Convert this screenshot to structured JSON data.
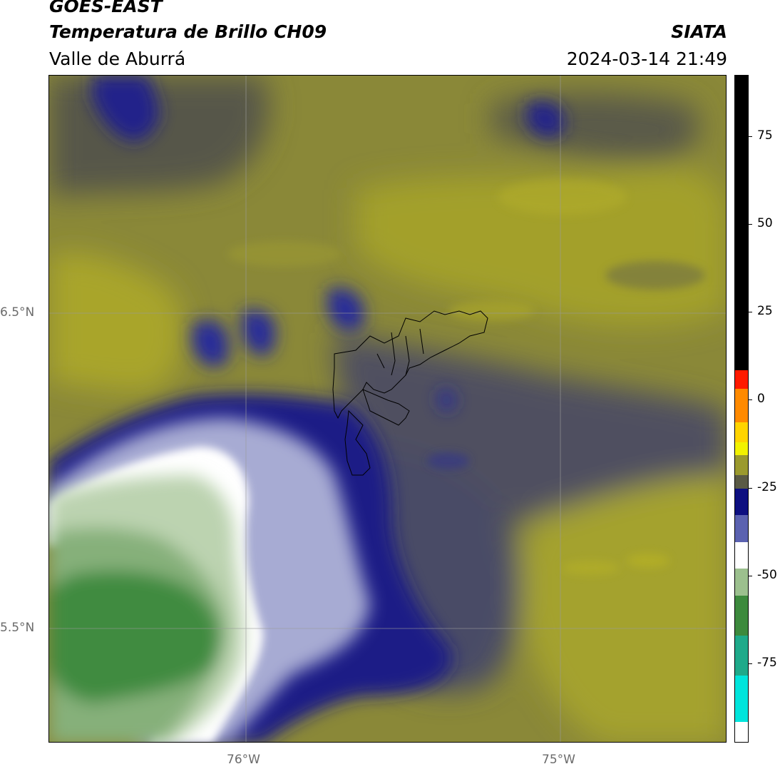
{
  "header": {
    "title_line1": "GOES-EAST",
    "title_line2": "Temperatura de Brillo CH09",
    "region": "Valle de Aburrá",
    "organization": "SIATA",
    "datetime": "2024-03-14 21:49"
  },
  "map": {
    "lat_labels": [
      "6.5°N",
      "5.5°N"
    ],
    "lon_labels": [
      "76°W",
      "75°W"
    ],
    "colors": {
      "olive_warm": "#a9a52a",
      "olive_mid": "#8c8a35",
      "gray_olive": "#5f5f4a",
      "slate": "#4b4c6a",
      "navy": "#1b1f86",
      "blue_mid": "#4a54a8",
      "lavender": "#a8acd4",
      "white": "#ffffff",
      "green_light": "#bcd3b0",
      "green_mid": "#7fae73",
      "green_deep": "#3e8a3e",
      "grid": "#9a9a9a",
      "boundary": "#000000"
    }
  },
  "colorbar": {
    "ticks": [
      "75",
      "50",
      "25",
      "0",
      "-25",
      "-50",
      "-75"
    ],
    "stops": [
      {
        "color": "#000000",
        "from": 0.0,
        "to": 0.442
      },
      {
        "color": "#ff1a00",
        "from": 0.442,
        "to": 0.47
      },
      {
        "color": "#ff8a00",
        "from": 0.47,
        "to": 0.52
      },
      {
        "color": "#ffd400",
        "from": 0.52,
        "to": 0.55
      },
      {
        "color": "#f2f200",
        "from": 0.55,
        "to": 0.57
      },
      {
        "color": "#9b9a2e",
        "from": 0.57,
        "to": 0.6
      },
      {
        "color": "#5a5a45",
        "from": 0.6,
        "to": 0.62
      },
      {
        "color": "#0d0f80",
        "from": 0.62,
        "to": 0.66
      },
      {
        "color": "#5b62b0",
        "from": 0.66,
        "to": 0.7
      },
      {
        "color": "#ffffff",
        "from": 0.7,
        "to": 0.74
      },
      {
        "color": "#9cc08e",
        "from": 0.74,
        "to": 0.78
      },
      {
        "color": "#3d8a3d",
        "from": 0.78,
        "to": 0.84
      },
      {
        "color": "#1faa8a",
        "from": 0.84,
        "to": 0.9
      },
      {
        "color": "#00e5dc",
        "from": 0.9,
        "to": 0.97
      },
      {
        "color": "#ffffff",
        "from": 0.97,
        "to": 1.0
      }
    ]
  }
}
